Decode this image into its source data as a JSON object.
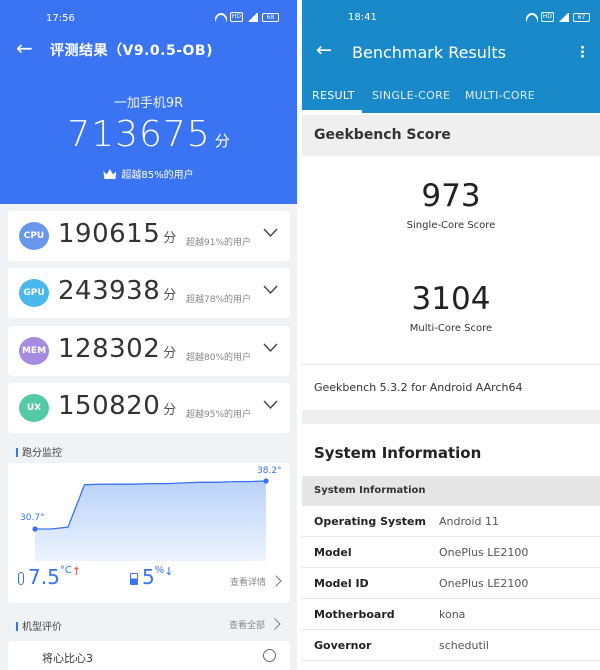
{
  "left": {
    "status": {
      "time": "17:56",
      "battery": "68"
    },
    "title": "评测结果（V9.0.5-OB)",
    "device": "一加手机9R",
    "total": {
      "score": "713675",
      "unit": "分"
    },
    "beats_total": "超越85%的用户",
    "cards": [
      {
        "badge": "CPU",
        "color": "#6a97ee",
        "score": "190615",
        "unit": "分",
        "beats": "超越91%的用户"
      },
      {
        "badge": "GPU",
        "color": "#4bb8ec",
        "score": "243938",
        "unit": "分",
        "beats": "超越78%的用户"
      },
      {
        "badge": "MEM",
        "color": "#a78be0",
        "score": "128302",
        "unit": "分",
        "beats": "超越80%的用户"
      },
      {
        "badge": "UX",
        "color": "#53c9a4",
        "score": "150820",
        "unit": "分",
        "beats": "超越95%的用户"
      }
    ],
    "monitor": {
      "title": "跑分监控",
      "start_temp": "30.7°",
      "end_temp": "38.2°",
      "temp_rise_value": "7.5",
      "temp_rise_unit": "°C",
      "temp_arrow": "↑",
      "battery_drop_value": "5",
      "battery_drop_unit": "%",
      "battery_arrow": "↓",
      "details_label": "查看详情",
      "temp_curve": [
        30.7,
        30.7,
        31.0,
        37.6,
        37.7,
        37.7,
        37.7,
        37.8,
        37.8,
        37.9,
        38.0,
        38.0,
        38.1,
        38.1,
        38.2
      ]
    },
    "review": {
      "title": "机型评价",
      "all_label": "查看全部",
      "item": "将心比心3"
    }
  },
  "right": {
    "status": {
      "time": "18:41",
      "battery": "67"
    },
    "title": "Benchmark Results",
    "tabs": [
      "RESULT",
      "SINGLE-CORE",
      "MULTI-CORE"
    ],
    "section_title": "Geekbench Score",
    "single_score": "973",
    "single_label": "Single-Core Score",
    "multi_score": "3104",
    "multi_label": "Multi-Core Score",
    "version": "Geekbench 5.3.2 for Android AArch64",
    "sysinfo_title": "System Information",
    "sysinfo_sub": "System Information",
    "rows": [
      {
        "key": "Operating System",
        "value": "Android 11"
      },
      {
        "key": "Model",
        "value": "OnePlus LE2100"
      },
      {
        "key": "Model ID",
        "value": "OnePlus LE2100"
      },
      {
        "key": "Motherboard",
        "value": "kona"
      },
      {
        "key": "Governor",
        "value": "schedutil"
      }
    ]
  },
  "colors": {
    "antutu_blue": "#3a74f2",
    "geekbench_blue": "#1a89c9"
  }
}
